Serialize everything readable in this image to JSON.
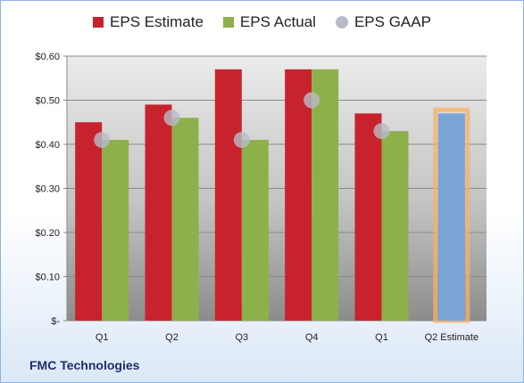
{
  "legend": [
    {
      "label": "EPS Estimate",
      "color": "#c8232d",
      "shape": "square"
    },
    {
      "label": "EPS Actual",
      "color": "#8db04a",
      "shape": "square"
    },
    {
      "label": "EPS GAAP",
      "color": "#b8bcc8",
      "shape": "circle"
    }
  ],
  "company": "FMC Technologies",
  "chart_data": {
    "type": "bar",
    "categories": [
      "Q1",
      "Q2",
      "Q3",
      "Q4",
      "Q1",
      "Q2 Estimate"
    ],
    "series": [
      {
        "name": "EPS Estimate",
        "values": [
          0.45,
          0.49,
          0.57,
          0.57,
          0.47,
          null
        ],
        "color": "#c8232d"
      },
      {
        "name": "EPS Actual",
        "values": [
          0.41,
          0.46,
          0.41,
          0.57,
          0.43,
          null
        ],
        "color": "#8db04a"
      },
      {
        "name": "EPS GAAP",
        "values": [
          0.41,
          0.46,
          0.41,
          0.5,
          0.43,
          null
        ],
        "color": "#b8bcc8",
        "marker": "circle"
      },
      {
        "name": "Q2 Estimate",
        "values": [
          null,
          null,
          null,
          null,
          null,
          0.47
        ],
        "color": "#7aa3d6",
        "highlight": "#f5b365"
      }
    ],
    "yticks": [
      "$-",
      "$0.10",
      "$0.20",
      "$0.30",
      "$0.40",
      "$0.50",
      "$0.60"
    ],
    "ylim": [
      0,
      0.6
    ],
    "grid": true,
    "legend_position": "top"
  }
}
